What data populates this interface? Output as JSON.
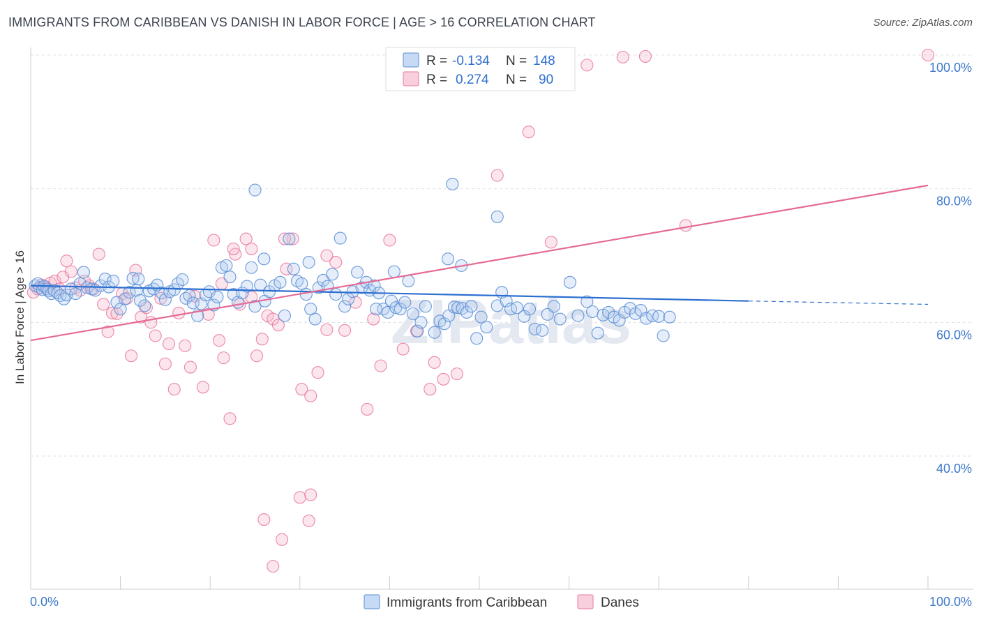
{
  "title": "IMMIGRANTS FROM CARIBBEAN VS DANISH IN LABOR FORCE | AGE > 16 CORRELATION CHART",
  "source": "Source: ZipAtlas.com",
  "watermark": "ZIPatlas",
  "colors": {
    "blue": "#5b8fd6",
    "pink": "#e97aa0",
    "blue_line": "#2d6fd0",
    "pink_line": "#e56a95",
    "grid": "#dde1e8"
  },
  "chart_data": {
    "type": "scatter",
    "xlabel": "",
    "ylabel": "In Labor Force | Age > 16",
    "xlim": [
      0,
      100
    ],
    "ylim": [
      20,
      100
    ],
    "x_tick_labels": [
      "0.0%",
      "100.0%"
    ],
    "y_ticks": [
      40,
      60,
      80,
      100
    ],
    "y_tick_labels": [
      "40.0%",
      "60.0%",
      "80.0%",
      "100.0%"
    ],
    "grid": true,
    "legend_position": "top-center",
    "stats": [
      {
        "r_label": "R =",
        "r_value": "-0.134",
        "n_label": "N =",
        "n_value": "148"
      },
      {
        "r_label": "R =",
        "r_value": "0.274",
        "n_label": "N =",
        "n_value": "90"
      }
    ],
    "series": [
      {
        "name": "Immigrants from Caribbean",
        "color": "#5b8fd6",
        "trend": {
          "x": [
            0,
            80,
            100
          ],
          "y": [
            65.5,
            63.2,
            62.7
          ]
        },
        "points": [
          [
            0.5,
            65.5
          ],
          [
            0.8,
            65.8
          ],
          [
            1.0,
            65.2
          ],
          [
            1.3,
            64.9
          ],
          [
            1.5,
            65.4
          ],
          [
            1.8,
            65.0
          ],
          [
            2.0,
            64.7
          ],
          [
            2.3,
            64.3
          ],
          [
            2.6,
            64.8
          ],
          [
            3.0,
            64.4
          ],
          [
            3.3,
            64.0
          ],
          [
            3.7,
            63.5
          ],
          [
            4.0,
            64.1
          ],
          [
            4.5,
            65.0
          ],
          [
            5.0,
            64.3
          ],
          [
            5.5,
            65.8
          ],
          [
            5.9,
            67.5
          ],
          [
            6.3,
            65.2
          ],
          [
            6.8,
            65.0
          ],
          [
            7.2,
            64.8
          ],
          [
            7.8,
            65.5
          ],
          [
            8.3,
            66.5
          ],
          [
            8.7,
            65.3
          ],
          [
            9.2,
            66.2
          ],
          [
            9.6,
            63.0
          ],
          [
            10.0,
            62.0
          ],
          [
            10.5,
            63.5
          ],
          [
            11.0,
            64.5
          ],
          [
            11.4,
            66.6
          ],
          [
            11.8,
            64.8
          ],
          [
            12.2,
            63.3
          ],
          [
            12.7,
            62.5
          ],
          [
            13.2,
            64.7
          ],
          [
            13.7,
            65.0
          ],
          [
            14.1,
            65.6
          ],
          [
            14.6,
            64.4
          ],
          [
            15.0,
            63.4
          ],
          [
            15.5,
            64.6
          ],
          [
            16.0,
            64.9
          ],
          [
            16.4,
            65.8
          ],
          [
            16.9,
            66.4
          ],
          [
            17.3,
            63.6
          ],
          [
            17.7,
            64.0
          ],
          [
            18.1,
            62.9
          ],
          [
            18.6,
            61.0
          ],
          [
            19.0,
            62.8
          ],
          [
            19.5,
            64.1
          ],
          [
            19.9,
            64.6
          ],
          [
            20.4,
            62.6
          ],
          [
            20.8,
            63.8
          ],
          [
            21.3,
            68.2
          ],
          [
            21.8,
            68.5
          ],
          [
            22.2,
            66.8
          ],
          [
            22.6,
            64.2
          ],
          [
            23.1,
            63.0
          ],
          [
            23.6,
            64.4
          ],
          [
            24.1,
            65.4
          ],
          [
            24.6,
            68.2
          ],
          [
            25.0,
            62.4
          ],
          [
            25.6,
            65.6
          ],
          [
            26.1,
            63.2
          ],
          [
            26.6,
            64.6
          ],
          [
            27.2,
            65.5
          ],
          [
            27.8,
            66.0
          ],
          [
            28.3,
            61.0
          ],
          [
            28.8,
            72.5
          ],
          [
            29.3,
            68.0
          ],
          [
            29.7,
            66.2
          ],
          [
            30.2,
            65.8
          ],
          [
            30.7,
            64.2
          ],
          [
            31.2,
            62.0
          ],
          [
            31.7,
            60.5
          ],
          [
            32.1,
            65.2
          ],
          [
            32.6,
            66.3
          ],
          [
            33.1,
            65.4
          ],
          [
            33.6,
            67.2
          ],
          [
            34.0,
            64.2
          ],
          [
            34.5,
            72.6
          ],
          [
            35.0,
            62.4
          ],
          [
            35.4,
            63.5
          ],
          [
            35.9,
            64.6
          ],
          [
            36.4,
            67.5
          ],
          [
            36.9,
            65.2
          ],
          [
            37.4,
            66.0
          ],
          [
            37.8,
            64.8
          ],
          [
            38.3,
            65.5
          ],
          [
            38.8,
            64.4
          ],
          [
            39.3,
            62.0
          ],
          [
            39.8,
            61.5
          ],
          [
            40.2,
            63.2
          ],
          [
            40.7,
            62.2
          ],
          [
            41.2,
            62.0
          ],
          [
            41.7,
            63.0
          ],
          [
            42.1,
            66.2
          ],
          [
            42.6,
            61.3
          ],
          [
            43.1,
            58.7
          ],
          [
            43.5,
            60.0
          ],
          [
            44.0,
            62.4
          ],
          [
            45.0,
            58.5
          ],
          [
            45.6,
            60.2
          ],
          [
            46.1,
            59.8
          ],
          [
            46.6,
            61.0
          ],
          [
            47.2,
            62.3
          ],
          [
            47.6,
            62.2
          ],
          [
            48.1,
            62.1
          ],
          [
            48.6,
            61.5
          ],
          [
            49.1,
            62.4
          ],
          [
            49.7,
            57.6
          ],
          [
            50.2,
            60.8
          ],
          [
            50.8,
            59.3
          ],
          [
            52.0,
            62.5
          ],
          [
            52.5,
            64.5
          ],
          [
            53.0,
            63.2
          ],
          [
            53.5,
            62.0
          ],
          [
            54.2,
            62.2
          ],
          [
            55.0,
            60.9
          ],
          [
            55.6,
            62.0
          ],
          [
            56.2,
            59.0
          ],
          [
            57.0,
            58.8
          ],
          [
            57.6,
            61.2
          ],
          [
            58.3,
            62.4
          ],
          [
            59.0,
            60.5
          ],
          [
            60.1,
            66.0
          ],
          [
            61.0,
            61.0
          ],
          [
            62.0,
            63.1
          ],
          [
            62.6,
            61.6
          ],
          [
            63.2,
            58.4
          ],
          [
            63.8,
            61.1
          ],
          [
            64.4,
            61.5
          ],
          [
            65.0,
            60.8
          ],
          [
            65.6,
            60.3
          ],
          [
            66.2,
            61.5
          ],
          [
            66.8,
            62.1
          ],
          [
            67.4,
            61.3
          ],
          [
            68.0,
            61.8
          ],
          [
            68.6,
            60.6
          ],
          [
            69.3,
            61.0
          ],
          [
            70.0,
            60.9
          ],
          [
            71.2,
            60.8
          ],
          [
            38.5,
            62.0
          ],
          [
            25.0,
            79.8
          ],
          [
            47.0,
            80.7
          ],
          [
            52.0,
            75.8
          ],
          [
            26.0,
            69.5
          ],
          [
            31.0,
            69.0
          ],
          [
            46.5,
            69.5
          ],
          [
            48.0,
            68.5
          ],
          [
            40.5,
            67.6
          ],
          [
            12.0,
            66.5
          ],
          [
            70.5,
            58.0
          ]
        ]
      },
      {
        "name": "Danes",
        "color": "#e97aa0",
        "trend": {
          "x": [
            0,
            100
          ],
          "y": [
            57.3,
            80.5
          ]
        },
        "points": [
          [
            0.3,
            64.5
          ],
          [
            0.8,
            65.0
          ],
          [
            1.2,
            65.6
          ],
          [
            1.7,
            65.3
          ],
          [
            2.2,
            65.9
          ],
          [
            2.7,
            66.2
          ],
          [
            3.2,
            65.0
          ],
          [
            3.6,
            66.8
          ],
          [
            4.0,
            69.2
          ],
          [
            4.5,
            67.6
          ],
          [
            5.0,
            65.2
          ],
          [
            5.5,
            64.8
          ],
          [
            6.0,
            66.2
          ],
          [
            6.5,
            65.5
          ],
          [
            7.0,
            65.0
          ],
          [
            7.6,
            70.2
          ],
          [
            8.1,
            62.7
          ],
          [
            8.6,
            58.6
          ],
          [
            9.1,
            61.4
          ],
          [
            9.6,
            61.3
          ],
          [
            10.2,
            64.3
          ],
          [
            10.7,
            63.6
          ],
          [
            11.2,
            55.0
          ],
          [
            11.7,
            67.8
          ],
          [
            12.3,
            60.8
          ],
          [
            12.9,
            62.2
          ],
          [
            13.4,
            60.0
          ],
          [
            13.9,
            58.0
          ],
          [
            14.5,
            63.6
          ],
          [
            15.0,
            53.8
          ],
          [
            15.4,
            56.8
          ],
          [
            16.0,
            50.0
          ],
          [
            16.5,
            61.4
          ],
          [
            17.2,
            56.5
          ],
          [
            17.8,
            53.3
          ],
          [
            18.3,
            63.9
          ],
          [
            19.2,
            50.3
          ],
          [
            19.8,
            61.2
          ],
          [
            20.4,
            72.3
          ],
          [
            21.0,
            57.3
          ],
          [
            21.5,
            54.7
          ],
          [
            22.2,
            45.6
          ],
          [
            22.8,
            70.2
          ],
          [
            23.3,
            62.7
          ],
          [
            24.0,
            72.5
          ],
          [
            24.6,
            63.8
          ],
          [
            25.2,
            55.0
          ],
          [
            25.8,
            57.5
          ],
          [
            26.4,
            61.0
          ],
          [
            27.0,
            60.5
          ],
          [
            27.6,
            59.6
          ],
          [
            28.5,
            68.0
          ],
          [
            29.2,
            72.5
          ],
          [
            30.2,
            50.0
          ],
          [
            31.2,
            49.0
          ],
          [
            32.0,
            52.5
          ],
          [
            33.0,
            58.9
          ],
          [
            34.0,
            69.0
          ],
          [
            35.0,
            58.8
          ],
          [
            36.2,
            63.0
          ],
          [
            37.5,
            47.0
          ],
          [
            38.2,
            60.5
          ],
          [
            39.0,
            53.5
          ],
          [
            40.0,
            72.3
          ],
          [
            41.5,
            56.0
          ],
          [
            43.0,
            58.7
          ],
          [
            44.5,
            50.0
          ],
          [
            45.0,
            54.0
          ],
          [
            46.0,
            51.5
          ],
          [
            47.5,
            52.3
          ],
          [
            21.3,
            65.8
          ],
          [
            22.6,
            71.0
          ],
          [
            24.6,
            71.0
          ],
          [
            28.3,
            72.5
          ],
          [
            33.0,
            70.0
          ],
          [
            26.0,
            30.5
          ],
          [
            28.0,
            27.5
          ],
          [
            30.0,
            33.8
          ],
          [
            31.2,
            34.2
          ],
          [
            31.0,
            30.3
          ],
          [
            27.0,
            23.5
          ],
          [
            49.2,
            96.0
          ],
          [
            52.0,
            82.0
          ],
          [
            55.5,
            88.5
          ],
          [
            58.0,
            72.0
          ],
          [
            62.0,
            98.5
          ],
          [
            66.0,
            99.7
          ],
          [
            68.5,
            99.8
          ],
          [
            73.0,
            74.5
          ],
          [
            100.0,
            100.0
          ]
        ]
      }
    ]
  },
  "legend": {
    "items": [
      "Immigrants from Caribbean",
      "Danes"
    ]
  }
}
